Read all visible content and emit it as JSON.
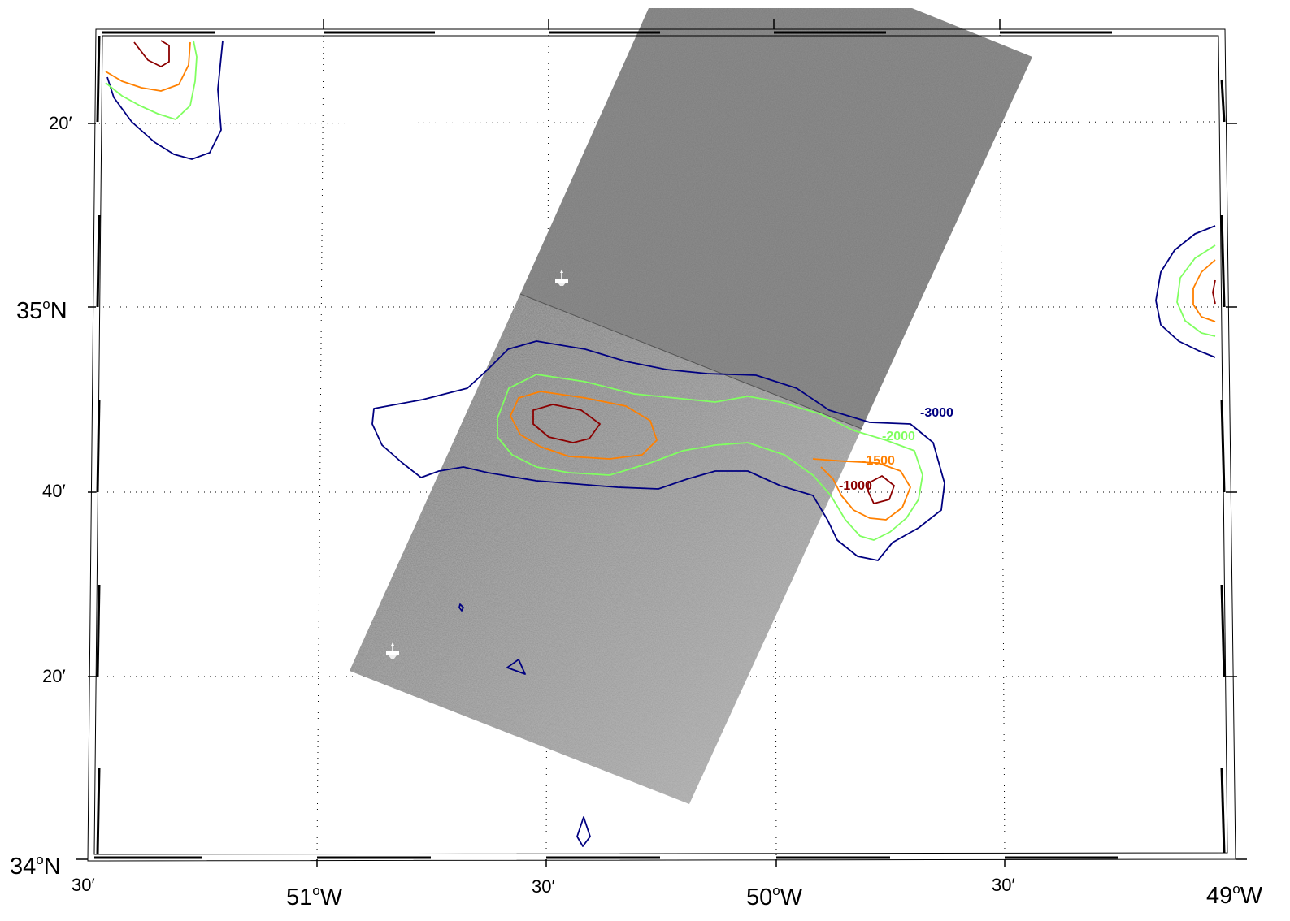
{
  "map": {
    "lon_labels": [
      {
        "deg": "",
        "sup": "",
        "suffix": "30′",
        "kind": "minor"
      },
      {
        "deg": "51",
        "sup": "o",
        "suffix": "W",
        "kind": "major"
      },
      {
        "deg": "",
        "sup": "",
        "suffix": "30′",
        "kind": "minor"
      },
      {
        "deg": "50",
        "sup": "o",
        "suffix": "W",
        "kind": "major"
      },
      {
        "deg": "",
        "sup": "",
        "suffix": "30′",
        "kind": "minor"
      },
      {
        "deg": "49",
        "sup": "o",
        "suffix": "W",
        "kind": "major"
      }
    ],
    "lat_labels": [
      {
        "deg": "34",
        "sup": "o",
        "suffix": "N",
        "kind": "major"
      },
      {
        "deg": "",
        "sup": "",
        "suffix": "20′",
        "kind": "minor"
      },
      {
        "deg": "",
        "sup": "",
        "suffix": "40′",
        "kind": "minor"
      },
      {
        "deg": "35",
        "sup": "o",
        "suffix": "N",
        "kind": "major"
      },
      {
        "deg": "",
        "sup": "",
        "suffix": "20′",
        "kind": "minor"
      }
    ],
    "contour_labels": [
      {
        "text": "-3000",
        "color": "#000080"
      },
      {
        "text": "-2000",
        "color": "#80ff60"
      },
      {
        "text": "-1500",
        "color": "#ff8000"
      },
      {
        "text": "-1000",
        "color": "#8b0000"
      }
    ],
    "contour_colors": {
      "d3000": "#000080",
      "d2000": "#80ff60",
      "d1500": "#ff8000",
      "d1000": "#8b0000"
    },
    "graticule_style": "dotted",
    "frame_style": "fancy-checkered",
    "overlay": "grayscale SAR image swaths",
    "icons": [
      "ship-icon",
      "ship-icon"
    ]
  }
}
